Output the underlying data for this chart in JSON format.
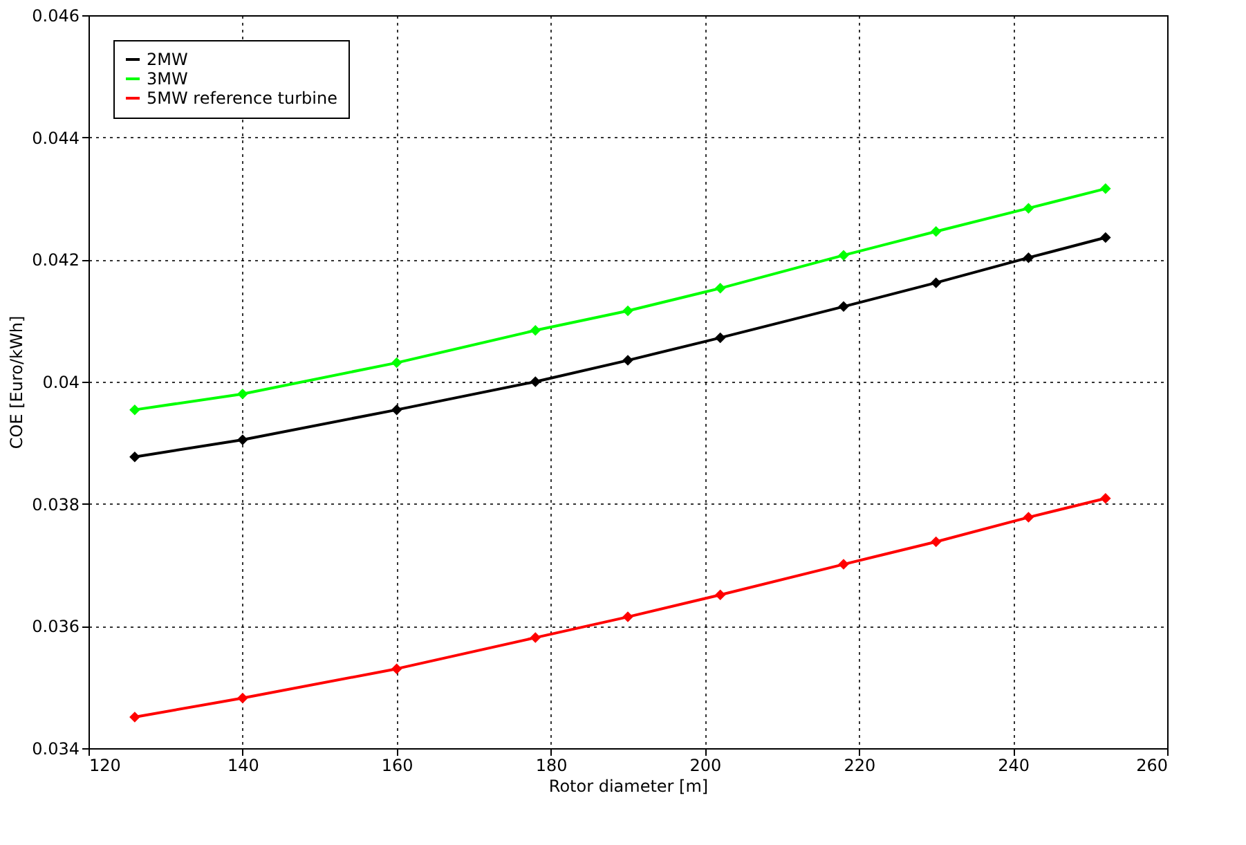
{
  "chart_data": {
    "type": "line",
    "xlabel": "Rotor diameter [m]",
    "ylabel": "COE [Euro/kWh]",
    "x": [
      126,
      140,
      160,
      178,
      190,
      202,
      218,
      230,
      242,
      252
    ],
    "series": [
      {
        "name": "2MW",
        "color": "#000000",
        "values": [
          0.03877,
          0.03905,
          0.03954,
          0.04,
          0.04035,
          0.04072,
          0.04123,
          0.04162,
          0.04203,
          0.04236
        ]
      },
      {
        "name": "3MW",
        "color": "#00ff00",
        "values": [
          0.03954,
          0.0398,
          0.04031,
          0.04084,
          0.04116,
          0.04153,
          0.04207,
          0.04246,
          0.04284,
          0.04316
        ]
      },
      {
        "name": "5MW reference turbine",
        "color": "#ff0000",
        "values": [
          0.03451,
          0.03482,
          0.0353,
          0.03581,
          0.03615,
          0.03651,
          0.03701,
          0.03738,
          0.03778,
          0.03809
        ]
      }
    ],
    "xlim": [
      120,
      260
    ],
    "xticks": [
      120,
      140,
      160,
      180,
      200,
      220,
      240,
      260
    ],
    "ylim": [
      0.034,
      0.046
    ],
    "yticks": [
      0.034,
      0.036,
      0.038,
      0.04,
      0.042,
      0.044,
      0.046
    ],
    "grid": true,
    "legend": "top left",
    "marker": "diamond",
    "line_style": "solid"
  }
}
